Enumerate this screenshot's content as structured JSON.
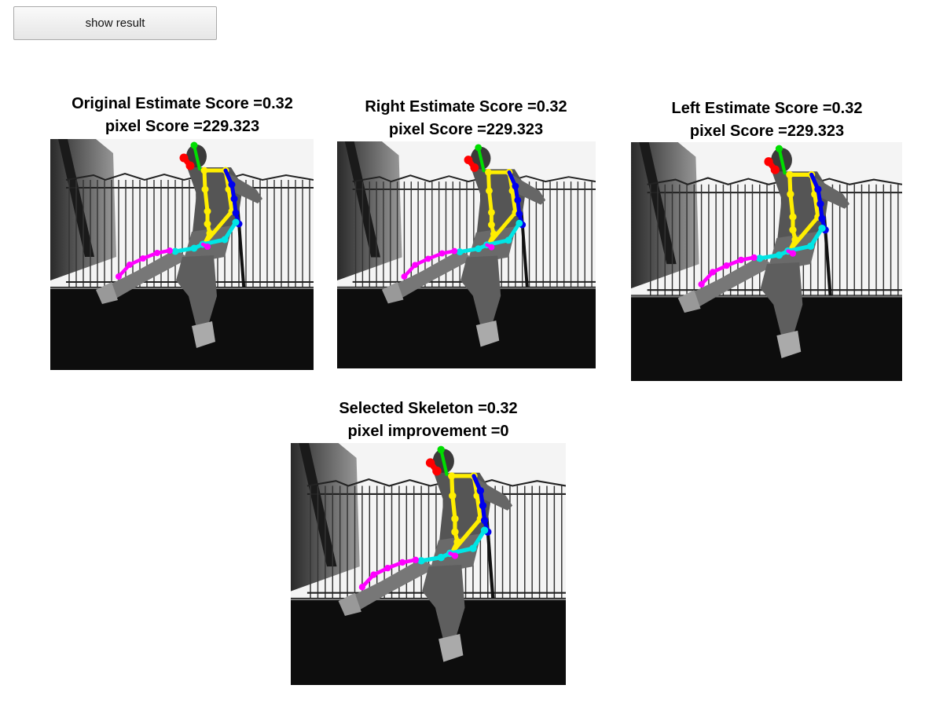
{
  "toolbar": {
    "show_result_label": "show result"
  },
  "panels": [
    {
      "id": "original",
      "line1": "Original Estimate Score =0.32",
      "line2": "pixel Score =229.323"
    },
    {
      "id": "right",
      "line1": "Right Estimate Score =0.32",
      "line2": "pixel Score =229.323"
    },
    {
      "id": "left",
      "line1": "Left Estimate Score =0.32",
      "line2": "pixel Score =229.323"
    },
    {
      "id": "selected",
      "line1": "Selected Skeleton =0.32",
      "line2": "pixel improvement =0"
    }
  ],
  "skeleton_colors": {
    "head": "#ff0000",
    "neck": "#00dd00",
    "torso": "#ffee00",
    "arm": "#0000ee",
    "pelvis": "#00e5e5",
    "leg": "#ff00ff"
  }
}
